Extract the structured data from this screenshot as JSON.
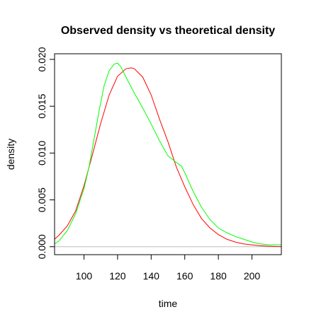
{
  "chart_data": {
    "type": "line",
    "title": "Observed density vs theoretical density",
    "xlabel": "time",
    "ylabel": "density",
    "xlim": [
      82.5,
      217.5
    ],
    "ylim": [
      -0.00085,
      0.0206
    ],
    "x_ticks": [
      100,
      120,
      140,
      160,
      180,
      200
    ],
    "x_tick_labels": [
      "100",
      "120",
      "140",
      "160",
      "180",
      "200"
    ],
    "y_ticks": [
      0.0,
      0.005,
      0.01,
      0.015,
      0.02
    ],
    "y_tick_labels": [
      "0.000",
      "0.005",
      "0.010",
      "0.015",
      "0.020"
    ],
    "zero_line": 0,
    "zero_line_color": "#bebebe",
    "grid": false,
    "legend": "none",
    "series": [
      {
        "color": "#ff0000",
        "x": [
          82.5,
          85,
          90,
          95,
          100,
          105,
          110,
          115,
          120,
          125,
          128,
          130,
          135,
          140,
          145,
          150,
          155,
          160,
          165,
          170,
          175,
          180,
          185,
          190,
          195,
          200,
          205,
          210,
          217.5
        ],
        "y": [
          0.0008,
          0.0012,
          0.0022,
          0.0038,
          0.0065,
          0.0098,
          0.0132,
          0.0162,
          0.0182,
          0.019,
          0.0191,
          0.019,
          0.0181,
          0.0162,
          0.0136,
          0.0112,
          0.0085,
          0.0064,
          0.0045,
          0.003,
          0.002,
          0.0013,
          0.0008,
          0.0005,
          0.0003,
          0.0002,
          0.0001,
          5e-05,
          0.0
        ]
      },
      {
        "color": "#00ff00",
        "x": [
          82.5,
          85,
          90,
          95,
          100,
          103,
          106,
          109,
          112,
          115,
          118,
          120,
          122,
          125,
          130,
          135,
          140,
          145,
          150,
          155,
          158,
          160,
          165,
          170,
          175,
          180,
          185,
          190,
          195,
          200,
          205,
          210,
          217.5
        ],
        "y": [
          0.0003,
          0.0006,
          0.0017,
          0.0035,
          0.0062,
          0.0085,
          0.0115,
          0.0145,
          0.0172,
          0.0188,
          0.0195,
          0.0196,
          0.0192,
          0.0181,
          0.0164,
          0.0148,
          0.0131,
          0.0113,
          0.0097,
          0.009,
          0.0086,
          0.0079,
          0.0059,
          0.0042,
          0.0029,
          0.002,
          0.0015,
          0.0011,
          0.0008,
          0.0005,
          0.0003,
          0.0002,
          0.0002
        ]
      }
    ]
  }
}
